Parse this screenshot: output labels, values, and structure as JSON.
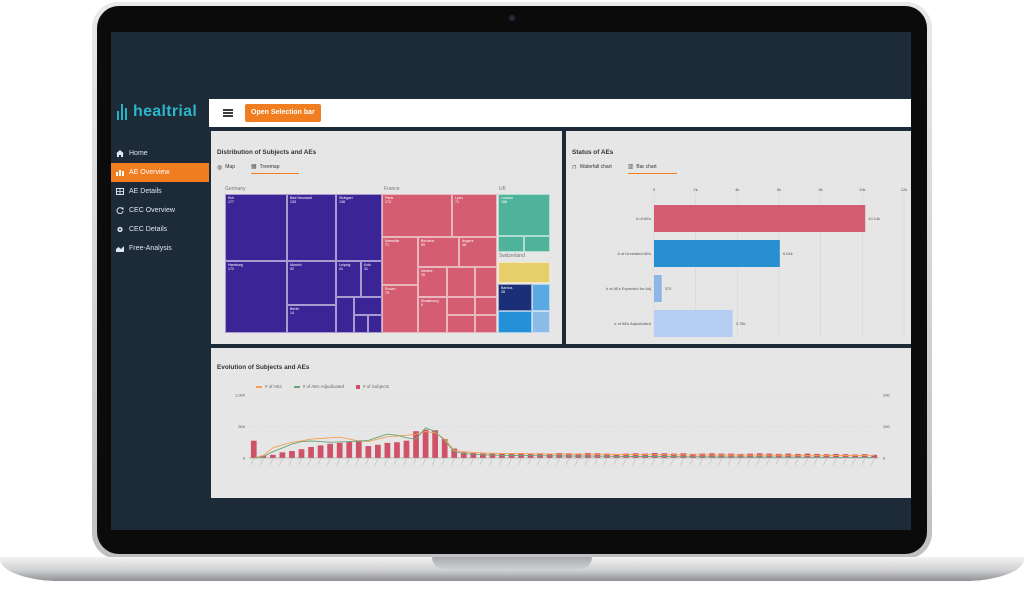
{
  "app": {
    "logo_text": "healtrial",
    "brand_color": "#f07d1f",
    "logo_color": "#2bb7c8"
  },
  "sidebar": {
    "items": [
      {
        "label": "Home",
        "icon": "home-icon",
        "active": false
      },
      {
        "label": "AE Overview",
        "icon": "bar-chart-icon",
        "active": true
      },
      {
        "label": "AE Details",
        "icon": "table-icon",
        "active": false
      },
      {
        "label": "CEC Overview",
        "icon": "refresh-icon",
        "active": false
      },
      {
        "label": "CEC Details",
        "icon": "gear-icon",
        "active": false
      },
      {
        "label": "Free-Analysis",
        "icon": "area-chart-icon",
        "active": false
      }
    ]
  },
  "topbar": {
    "selection_button": "Open Selection bar"
  },
  "distribution": {
    "title": "Distribution of Subjects and AEs",
    "tabs": [
      {
        "label": "Map",
        "icon": "globe-icon",
        "active": false
      },
      {
        "label": "Treemap",
        "icon": "treemap-icon",
        "active": true
      }
    ],
    "countries": [
      "Germany",
      "France",
      "UK",
      "Switzerland"
    ],
    "cells": [
      {
        "name": "Kiel",
        "value": "177"
      },
      {
        "name": "Bad Neustadt",
        "value": "133"
      },
      {
        "name": "Stuttgart",
        "value": "138"
      },
      {
        "name": "Hamburg",
        "value": "172"
      },
      {
        "name": "Munich",
        "value": "92"
      },
      {
        "name": "Leipzig",
        "value": "41"
      },
      {
        "name": "Koln",
        "value": "31"
      },
      {
        "name": "Berlin",
        "value": "14"
      },
      {
        "name": "Paris",
        "value": "173"
      },
      {
        "name": "Lyon",
        "value": "71"
      },
      {
        "name": "Marseille",
        "value": "71"
      },
      {
        "name": "Bordeux",
        "value": "59"
      },
      {
        "name": "Angers",
        "value": "46"
      },
      {
        "name": "Nantes",
        "value": "35"
      },
      {
        "name": "Rouen",
        "value": "79"
      },
      {
        "name": "Strasbourg",
        "value": "6"
      },
      {
        "name": "London",
        "value": "188"
      },
      {
        "name": "Barbus",
        "value": "35"
      }
    ]
  },
  "status": {
    "title": "Status of AEs",
    "tabs": [
      {
        "label": "Waterfall chart",
        "icon": "waterfall-icon",
        "active": false
      },
      {
        "label": "Bar chart",
        "icon": "bar-chart-icon",
        "active": true
      }
    ]
  },
  "evolution": {
    "title": "Evolution of Subjects and AEs",
    "legend": [
      {
        "label": "# of AEs",
        "color": "#f2a154"
      },
      {
        "label": "# of AEs Adjudicated",
        "color": "#6aa57a"
      },
      {
        "label": "# of Subjects",
        "color": "#cf5268"
      }
    ],
    "y_left_ticks": [
      "1,000",
      "500",
      "0"
    ],
    "y_right_ticks": [
      "200",
      "100",
      "0"
    ]
  },
  "chart_data": [
    {
      "type": "bar",
      "title": "Status of AEs",
      "categories": [
        "# of AEs",
        "# of Unrelated AEs",
        "# of AEs Expected for Adj",
        "# of AEs Adjudicated"
      ],
      "values": [
        10140,
        6040,
        370,
        3780
      ],
      "value_labels": [
        "10.14k",
        "6.04k",
        "370",
        "3.78k"
      ],
      "colors": [
        "#d45d72",
        "#2a8fd0",
        "#8eb5e6",
        "#b5cdf2"
      ],
      "xlim": [
        0,
        12000
      ],
      "x_ticks": [
        "0",
        "2k",
        "4k",
        "6k",
        "8k",
        "10k",
        "12k"
      ]
    },
    {
      "type": "bar",
      "title": "Evolution of Subjects and AEs",
      "series": [
        {
          "name": "# of Subjects",
          "values": [
            55,
            8,
            10,
            18,
            22,
            28,
            35,
            40,
            45,
            48,
            52,
            55,
            38,
            42,
            48,
            50,
            55,
            85,
            90,
            88,
            60,
            30,
            18,
            16,
            14,
            14,
            15,
            15,
            16,
            14,
            15,
            14,
            16,
            15,
            14,
            16,
            15,
            14,
            13,
            14,
            15,
            14,
            16,
            15,
            14,
            15,
            13,
            14,
            15,
            14,
            14,
            13,
            14,
            15,
            14,
            13,
            14,
            13,
            14,
            13,
            12,
            13,
            12,
            11,
            12,
            10
          ]
        },
        {
          "name": "# of AEs",
          "values": [
            0,
            40,
            160,
            210,
            250,
            270,
            300,
            310,
            320,
            330,
            300,
            270,
            260,
            300,
            340,
            350,
            360,
            380,
            420,
            400,
            300,
            120,
            100,
            90,
            80,
            75,
            72,
            70,
            70,
            68,
            66,
            65,
            64,
            62,
            60,
            60,
            58,
            58,
            56,
            55,
            54,
            54,
            53,
            52,
            52,
            51,
            50,
            50,
            49,
            48,
            48,
            47,
            46,
            46,
            45,
            44,
            44,
            43,
            42,
            42,
            41,
            40,
            40,
            39,
            38,
            38
          ]
        },
        {
          "name": "# of AEs Adjudicated",
          "values": [
            0,
            20,
            100,
            160,
            220,
            260,
            270,
            260,
            250,
            255,
            260,
            270,
            280,
            330,
            380,
            360,
            320,
            300,
            480,
            420,
            280,
            100,
            70,
            60,
            50,
            45,
            42,
            40,
            40,
            38,
            36,
            35,
            34,
            32,
            30,
            30,
            28,
            28,
            26,
            25,
            24,
            24,
            23,
            22,
            22,
            21,
            20,
            20,
            19,
            18,
            18,
            17,
            16,
            16,
            15,
            14,
            14,
            13,
            12,
            12,
            11,
            10,
            10,
            9,
            8,
            8
          ]
        }
      ]
    }
  ]
}
